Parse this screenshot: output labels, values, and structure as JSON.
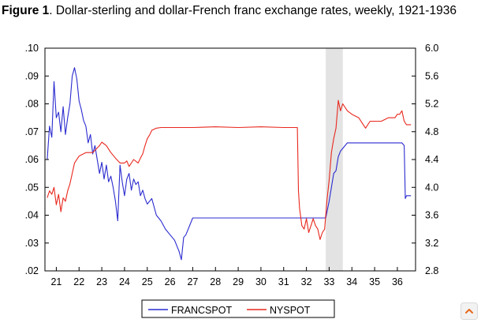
{
  "figure": {
    "label": "Figure 1",
    "caption": ". Dollar-sterling and dollar-French franc exchange rates, weekly, 1921-1936"
  },
  "colors": {
    "francspot": "#2b2bd0",
    "nyspot": "#e8281d",
    "shade": "#e3e3e3",
    "axis": "#000000"
  },
  "icons": {
    "scroll_button": "chevron-up-icon"
  },
  "chart_data": {
    "type": "line",
    "title": "",
    "xlabel": "",
    "ylabel": "",
    "xlim": [
      1920.5,
      1936.8
    ],
    "x_ticks": [
      1921,
      1922,
      1923,
      1924,
      1925,
      1926,
      1927,
      1928,
      1929,
      1930,
      1931,
      1932,
      1933,
      1934,
      1935,
      1936
    ],
    "x_tick_labels": [
      "21",
      "22",
      "23",
      "24",
      "25",
      "26",
      "27",
      "28",
      "29",
      "30",
      "31",
      "32",
      "33",
      "34",
      "35",
      "36"
    ],
    "ylim_left": [
      0.02,
      0.1
    ],
    "y_left_ticks": [
      0.02,
      0.03,
      0.04,
      0.05,
      0.06,
      0.07,
      0.08,
      0.09,
      0.1
    ],
    "y_left_tick_labels": [
      ".02",
      ".03",
      ".04",
      ".05",
      ".06",
      ".07",
      ".08",
      ".09",
      ".10"
    ],
    "ylim_right": [
      2.8,
      6.0
    ],
    "y_right_ticks": [
      2.8,
      3.2,
      3.6,
      4.0,
      4.4,
      4.8,
      5.2,
      5.6,
      6.0
    ],
    "y_right_tick_labels": [
      "2.8",
      "3.2",
      "3.6",
      "4.0",
      "4.4",
      "4.8",
      "5.2",
      "5.6",
      "6.0"
    ],
    "grid": false,
    "legend_position": "bottom-center",
    "shaded_region": [
      1932.85,
      1933.6
    ],
    "series": [
      {
        "name": "FRANCSPOT",
        "axis": "left",
        "x": [
          1920.6,
          1920.7,
          1920.8,
          1920.9,
          1921.0,
          1921.1,
          1921.2,
          1921.3,
          1921.4,
          1921.5,
          1921.6,
          1921.7,
          1921.8,
          1921.9,
          1922.0,
          1922.1,
          1922.2,
          1922.3,
          1922.4,
          1922.5,
          1922.6,
          1922.7,
          1922.8,
          1922.9,
          1923.0,
          1923.1,
          1923.2,
          1923.3,
          1923.4,
          1923.5,
          1923.6,
          1923.7,
          1923.8,
          1923.9,
          1924.0,
          1924.1,
          1924.2,
          1924.3,
          1924.4,
          1924.5,
          1924.6,
          1924.7,
          1924.8,
          1924.9,
          1925.0,
          1925.2,
          1925.4,
          1925.6,
          1925.8,
          1926.0,
          1926.2,
          1926.4,
          1926.5,
          1926.6,
          1926.7,
          1927.0,
          1927.5,
          1928.0,
          1929.0,
          1930.0,
          1931.0,
          1931.5,
          1932.0,
          1932.5,
          1932.85,
          1933.0,
          1933.1,
          1933.2,
          1933.3,
          1933.4,
          1933.5,
          1933.6,
          1933.8,
          1934.0,
          1934.5,
          1935.0,
          1935.5,
          1936.0,
          1936.2,
          1936.3,
          1936.35,
          1936.4,
          1936.6
        ],
        "y": [
          0.06,
          0.072,
          0.068,
          0.088,
          0.075,
          0.077,
          0.07,
          0.079,
          0.069,
          0.075,
          0.08,
          0.09,
          0.093,
          0.089,
          0.081,
          0.078,
          0.074,
          0.072,
          0.066,
          0.069,
          0.062,
          0.065,
          0.06,
          0.055,
          0.059,
          0.053,
          0.058,
          0.052,
          0.054,
          0.05,
          0.045,
          0.038,
          0.058,
          0.052,
          0.047,
          0.053,
          0.055,
          0.049,
          0.053,
          0.051,
          0.052,
          0.047,
          0.049,
          0.046,
          0.044,
          0.046,
          0.04,
          0.038,
          0.035,
          0.033,
          0.031,
          0.027,
          0.024,
          0.032,
          0.033,
          0.039,
          0.039,
          0.039,
          0.039,
          0.039,
          0.039,
          0.039,
          0.039,
          0.039,
          0.039,
          0.045,
          0.05,
          0.055,
          0.056,
          0.061,
          0.063,
          0.064,
          0.066,
          0.066,
          0.066,
          0.066,
          0.066,
          0.066,
          0.066,
          0.065,
          0.046,
          0.047,
          0.047
        ]
      },
      {
        "name": "NYSPOT",
        "axis": "right",
        "x": [
          1920.6,
          1920.7,
          1920.8,
          1920.9,
          1921.0,
          1921.1,
          1921.2,
          1921.3,
          1921.4,
          1921.5,
          1921.6,
          1921.7,
          1921.8,
          1922.0,
          1922.3,
          1922.6,
          1922.9,
          1923.0,
          1923.2,
          1923.4,
          1923.6,
          1923.8,
          1924.0,
          1924.1,
          1924.2,
          1924.4,
          1924.6,
          1924.7,
          1924.8,
          1924.9,
          1925.0,
          1925.1,
          1925.2,
          1925.4,
          1925.6,
          1926.0,
          1927.0,
          1928.0,
          1929.0,
          1930.0,
          1931.0,
          1931.3,
          1931.6,
          1931.65,
          1931.7,
          1931.8,
          1931.9,
          1932.0,
          1932.1,
          1932.2,
          1932.3,
          1932.4,
          1932.5,
          1932.6,
          1932.7,
          1932.8,
          1932.9,
          1933.0,
          1933.1,
          1933.2,
          1933.3,
          1933.4,
          1933.5,
          1933.6,
          1933.8,
          1934.0,
          1934.3,
          1934.5,
          1934.6,
          1934.8,
          1935.0,
          1935.3,
          1935.6,
          1935.9,
          1936.0,
          1936.1,
          1936.2,
          1936.3,
          1936.4,
          1936.6
        ],
        "y": [
          3.85,
          3.95,
          3.9,
          4.0,
          3.75,
          3.9,
          3.65,
          3.85,
          3.8,
          3.95,
          4.05,
          4.2,
          4.35,
          4.45,
          4.5,
          4.5,
          4.6,
          4.65,
          4.6,
          4.5,
          4.42,
          4.35,
          4.35,
          4.38,
          4.3,
          4.4,
          4.35,
          4.42,
          4.48,
          4.6,
          4.7,
          4.75,
          4.82,
          4.85,
          4.86,
          4.86,
          4.86,
          4.87,
          4.86,
          4.87,
          4.86,
          4.86,
          4.86,
          3.95,
          3.7,
          3.45,
          3.4,
          3.55,
          3.35,
          3.45,
          3.55,
          3.45,
          3.4,
          3.25,
          3.35,
          3.4,
          3.8,
          4.1,
          4.5,
          4.7,
          4.85,
          5.25,
          5.1,
          5.2,
          5.1,
          5.05,
          5.0,
          4.9,
          4.85,
          4.95,
          4.95,
          4.95,
          5.0,
          5.0,
          5.05,
          5.05,
          5.1,
          4.95,
          4.9,
          4.9
        ]
      }
    ]
  }
}
